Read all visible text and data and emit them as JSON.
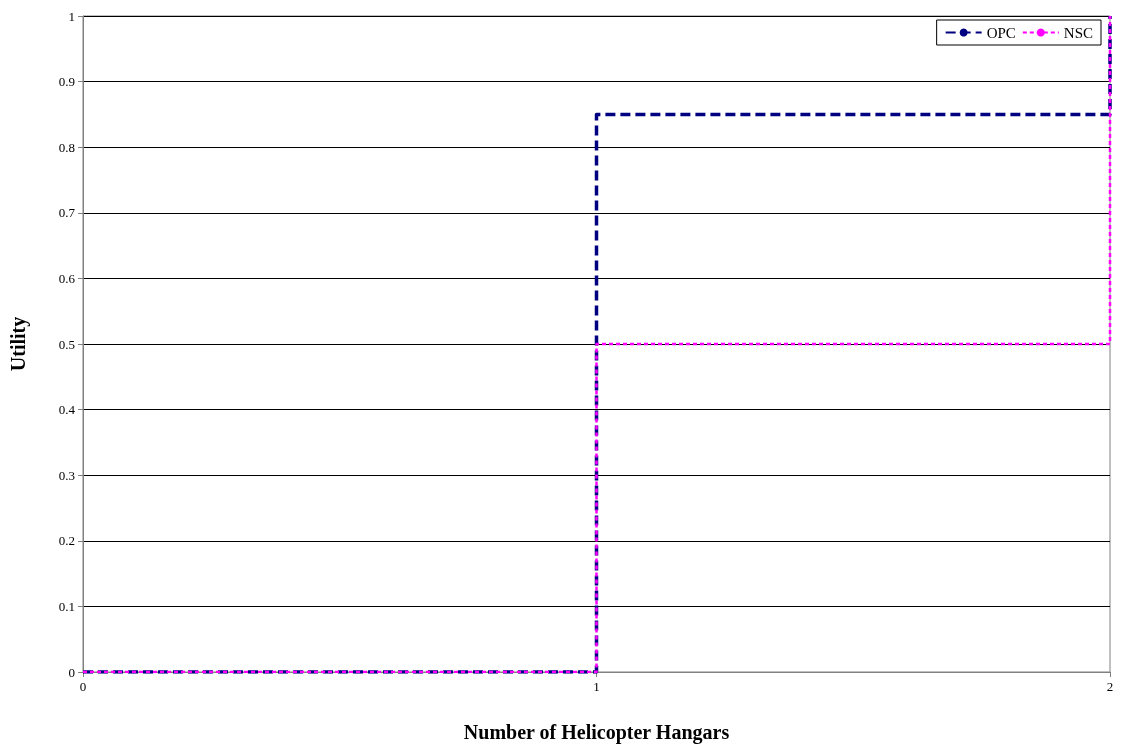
{
  "chart_data": {
    "type": "step",
    "xlabel": "Number of Helicopter Hangars",
    "ylabel": "Utility",
    "x": [
      0,
      1,
      2
    ],
    "series": [
      {
        "name": "OPC",
        "color": "#000080",
        "values": [
          0,
          0.85,
          1
        ],
        "line_style": "dashed"
      },
      {
        "name": "NSC",
        "color": "#ff00ff",
        "values": [
          0,
          0.5,
          1
        ],
        "line_style": "dotted"
      }
    ],
    "xlim": [
      0,
      2
    ],
    "xticks": [
      0,
      1,
      2
    ],
    "ylim": [
      0,
      1
    ],
    "yticks": [
      0,
      0.1,
      0.2,
      0.3,
      0.4,
      0.5,
      0.6,
      0.7,
      0.8,
      0.9,
      1
    ],
    "grid": "y",
    "legend": "top right",
    "marker": "none"
  }
}
